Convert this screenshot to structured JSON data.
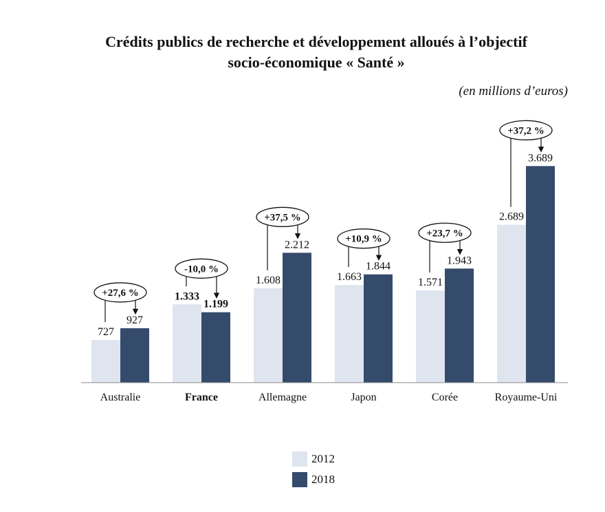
{
  "title_line1": "Crédits publics de recherche et développement alloués à l’objectif",
  "title_line2": "socio-économique « Santé »",
  "unit": "(en millions d’euros)",
  "colors": {
    "s2012": "#dfe5ef",
    "s2018": "#344b6b"
  },
  "chart_data": {
    "type": "bar",
    "categories": [
      "Australie",
      "France",
      "Allemagne",
      "Japon",
      "Corée",
      "Royaume-Uni"
    ],
    "series": [
      {
        "name": "2012",
        "values": [
          727,
          1333,
          1608,
          1663,
          1571,
          2689
        ],
        "labels": [
          "727",
          "1.333",
          "1.608",
          "1.663",
          "1.571",
          "2.689"
        ]
      },
      {
        "name": "2018",
        "values": [
          927,
          1199,
          2212,
          1844,
          1943,
          3689
        ],
        "labels": [
          "927",
          "1.199",
          "2.212",
          "1.844",
          "1.943",
          "3.689"
        ]
      }
    ],
    "changes": [
      "+27,6 %",
      "-10,0 %",
      "+37,5 %",
      "+10,9 %",
      "+23,7 %",
      "+37,2 %"
    ],
    "bold_categories": [
      "France"
    ],
    "ylim": [
      0,
      4000
    ],
    "grid": false,
    "legend_position": "bottom-center"
  }
}
